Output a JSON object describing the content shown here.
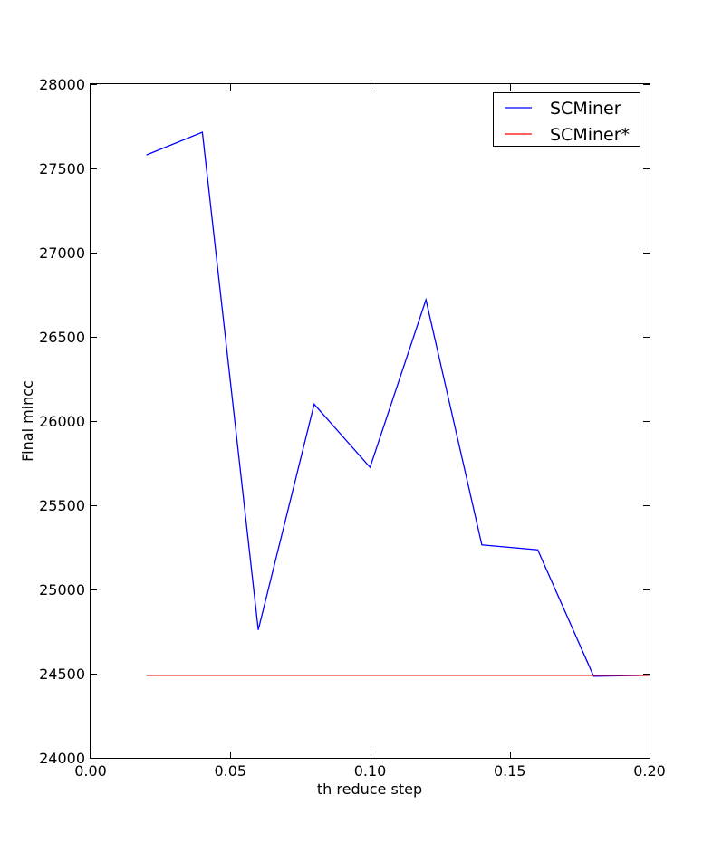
{
  "chart_data": {
    "type": "line",
    "title": "",
    "xlabel": "th reduce step",
    "ylabel": "Final mincc",
    "xlim": [
      0.0,
      0.2
    ],
    "ylim": [
      24000,
      28000
    ],
    "x_ticks": [
      0.0,
      0.05,
      0.1,
      0.15,
      0.2
    ],
    "x_tick_labels": [
      "0.00",
      "0.05",
      "0.10",
      "0.15",
      "0.20"
    ],
    "y_ticks": [
      24000,
      24500,
      25000,
      25500,
      26000,
      26500,
      27000,
      27500,
      28000
    ],
    "y_tick_labels": [
      "24000",
      "24500",
      "25000",
      "25500",
      "26000",
      "26500",
      "27000",
      "27500",
      "28000"
    ],
    "grid": false,
    "legend_position": "top-right",
    "series": [
      {
        "name": "SCMiner",
        "color": "#0000ff",
        "x": [
          0.02,
          0.04,
          0.06,
          0.08,
          0.1,
          0.12,
          0.14,
          0.16,
          0.18,
          0.2
        ],
        "y": [
          27580,
          27715,
          24760,
          26100,
          25725,
          26720,
          25265,
          25235,
          24485,
          24490
        ]
      },
      {
        "name": "SCMiner*",
        "color": "#ff0000",
        "x": [
          0.02,
          0.04,
          0.06,
          0.08,
          0.1,
          0.12,
          0.14,
          0.16,
          0.18,
          0.2
        ],
        "y": [
          24490,
          24490,
          24490,
          24490,
          24490,
          24490,
          24490,
          24490,
          24490,
          24490
        ]
      }
    ]
  }
}
